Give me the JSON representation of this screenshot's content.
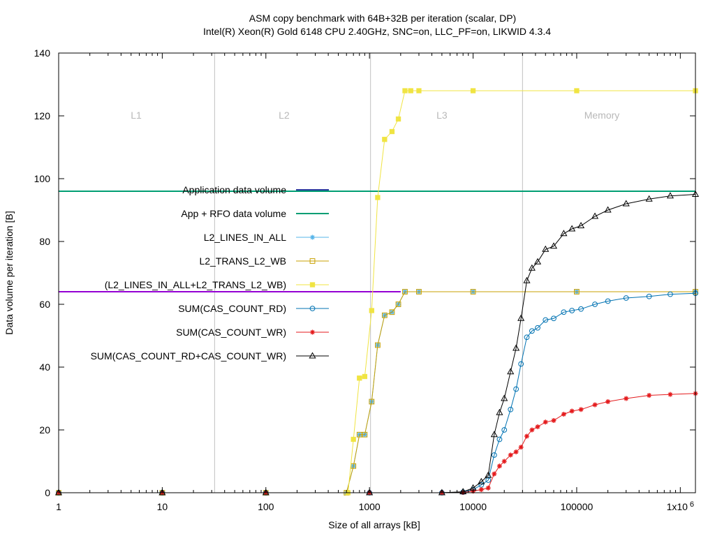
{
  "chart_data": {
    "type": "line",
    "title": "ASM copy benchmark with 64B+32B per iteration (scalar, DP)",
    "subtitle": "Intel(R) Xeon(R) Gold 6148 CPU 2.40GHz, SNC=on, LLC_PF=on, LIKWID 4.3.4",
    "xlabel": "Size of all arrays [kB]",
    "ylabel": "Data volume per iteration [B]",
    "xscale": "log",
    "xlim": [
      1,
      1400000
    ],
    "ylim": [
      0,
      140
    ],
    "x_ticks": [
      {
        "value": 1,
        "label": "1"
      },
      {
        "value": 10,
        "label": "10"
      },
      {
        "value": 100,
        "label": "100"
      },
      {
        "value": 1000,
        "label": "1000"
      },
      {
        "value": 10000,
        "label": "10000"
      },
      {
        "value": 100000,
        "label": "100000"
      },
      {
        "value": 1000000,
        "label": "1x10",
        "sup": "6"
      }
    ],
    "y_ticks": [
      0,
      20,
      40,
      60,
      80,
      100,
      120,
      140
    ],
    "grid": false,
    "legend_position": "center-left",
    "regions": {
      "boundaries": [
        32,
        1024,
        30000
      ],
      "labels": [
        {
          "text": "L1",
          "x": 5.6
        },
        {
          "text": "L2",
          "x": 150
        },
        {
          "text": "L3",
          "x": 5000
        },
        {
          "text": "Memory",
          "x": 175000
        }
      ]
    },
    "reference_lines": [
      {
        "name": "Application data volume",
        "y": 96,
        "color": "#2b3a9e"
      },
      {
        "name": "App + RFO data volume",
        "y": 96,
        "color": "#009e73"
      },
      {
        "y": 64,
        "color": "#9400d3",
        "x_end": 2000
      }
    ],
    "series": [
      {
        "name": "L2_LINES_IN_ALL",
        "marker": "asterisk",
        "color": "#56b4e9",
        "points": [
          [
            1,
            0
          ],
          [
            10,
            0
          ],
          [
            100,
            0
          ],
          [
            600,
            0
          ],
          [
            700,
            8.5
          ],
          [
            800,
            18.5
          ],
          [
            900,
            18.5
          ],
          [
            1050,
            29
          ],
          [
            1200,
            47
          ],
          [
            1400,
            56.5
          ],
          [
            1650,
            57.5
          ],
          [
            1900,
            60
          ],
          [
            2200,
            64
          ],
          [
            3000,
            64
          ],
          [
            10000,
            64
          ],
          [
            100000,
            64
          ],
          [
            1400000,
            64
          ]
        ]
      },
      {
        "name": "L2_TRANS_L2_WB",
        "marker": "open-square",
        "color": "#c8a000",
        "points": [
          [
            1,
            0
          ],
          [
            10,
            0
          ],
          [
            100,
            0
          ],
          [
            600,
            0
          ],
          [
            700,
            8.5
          ],
          [
            800,
            18.5
          ],
          [
            900,
            18.5
          ],
          [
            1050,
            29
          ],
          [
            1200,
            47
          ],
          [
            1400,
            56.5
          ],
          [
            1650,
            57.5
          ],
          [
            1900,
            60
          ],
          [
            2200,
            64
          ],
          [
            3000,
            64
          ],
          [
            10000,
            64
          ],
          [
            100000,
            64
          ],
          [
            1400000,
            64
          ]
        ]
      },
      {
        "name": "(L2_LINES_IN_ALL+L2_TRANS_L2_WB)",
        "marker": "filled-square",
        "color": "#f0e442",
        "points": [
          [
            1,
            0
          ],
          [
            10,
            0
          ],
          [
            100,
            0
          ],
          [
            620,
            0
          ],
          [
            700,
            17
          ],
          [
            800,
            36.5
          ],
          [
            900,
            37
          ],
          [
            1050,
            58
          ],
          [
            1200,
            94
          ],
          [
            1400,
            112.5
          ],
          [
            1650,
            115
          ],
          [
            1900,
            119
          ],
          [
            2200,
            128
          ],
          [
            2500,
            128
          ],
          [
            3000,
            128
          ],
          [
            10000,
            128
          ],
          [
            100000,
            128
          ],
          [
            1400000,
            128
          ]
        ]
      },
      {
        "name": "SUM(CAS_COUNT_RD)",
        "marker": "open-circle",
        "color": "#0072b2",
        "points": [
          [
            1,
            0
          ],
          [
            10,
            0
          ],
          [
            100,
            0
          ],
          [
            1000,
            0
          ],
          [
            5000,
            0
          ],
          [
            8000,
            0.2
          ],
          [
            10000,
            1
          ],
          [
            12000,
            2.5
          ],
          [
            14000,
            4
          ],
          [
            16000,
            12
          ],
          [
            18000,
            17
          ],
          [
            20000,
            20
          ],
          [
            23000,
            26.5
          ],
          [
            26000,
            33
          ],
          [
            29000,
            41
          ],
          [
            33000,
            49.5
          ],
          [
            37000,
            51.5
          ],
          [
            42000,
            52.5
          ],
          [
            50000,
            55
          ],
          [
            60000,
            55.5
          ],
          [
            75000,
            57.5
          ],
          [
            90000,
            58
          ],
          [
            110000,
            58.5
          ],
          [
            150000,
            60
          ],
          [
            200000,
            61
          ],
          [
            300000,
            62
          ],
          [
            500000,
            62.5
          ],
          [
            800000,
            63.2
          ],
          [
            1400000,
            63.5
          ]
        ]
      },
      {
        "name": "SUM(CAS_COUNT_WR)",
        "marker": "asterisk",
        "color": "#e41a1c",
        "points": [
          [
            1,
            0
          ],
          [
            10,
            0
          ],
          [
            100,
            0
          ],
          [
            1000,
            0
          ],
          [
            5000,
            0
          ],
          [
            8000,
            0.1
          ],
          [
            10000,
            0.5
          ],
          [
            12000,
            1
          ],
          [
            14000,
            1.5
          ],
          [
            16000,
            6
          ],
          [
            18000,
            8.5
          ],
          [
            20000,
            10
          ],
          [
            23000,
            12
          ],
          [
            26000,
            13
          ],
          [
            29000,
            14.5
          ],
          [
            33000,
            18
          ],
          [
            37000,
            20
          ],
          [
            42000,
            21
          ],
          [
            50000,
            22.5
          ],
          [
            60000,
            23
          ],
          [
            75000,
            25
          ],
          [
            90000,
            26
          ],
          [
            110000,
            26.5
          ],
          [
            150000,
            28
          ],
          [
            200000,
            29
          ],
          [
            300000,
            30
          ],
          [
            500000,
            31
          ],
          [
            800000,
            31.3
          ],
          [
            1400000,
            31.6
          ]
        ]
      },
      {
        "name": "SUM(CAS_COUNT_RD+CAS_COUNT_WR)",
        "marker": "open-triangle",
        "color": "#000000",
        "points": [
          [
            1,
            0
          ],
          [
            10,
            0
          ],
          [
            100,
            0
          ],
          [
            1000,
            0
          ],
          [
            5000,
            0
          ],
          [
            8000,
            0.3
          ],
          [
            10000,
            1.5
          ],
          [
            12000,
            3.5
          ],
          [
            14000,
            5.5
          ],
          [
            16000,
            18.5
          ],
          [
            18000,
            25.5
          ],
          [
            20000,
            30
          ],
          [
            23000,
            38.5
          ],
          [
            26000,
            46
          ],
          [
            29000,
            55.5
          ],
          [
            33000,
            67.5
          ],
          [
            37000,
            71.5
          ],
          [
            42000,
            73.5
          ],
          [
            50000,
            77.5
          ],
          [
            60000,
            78.5
          ],
          [
            75000,
            82.5
          ],
          [
            90000,
            84
          ],
          [
            110000,
            85
          ],
          [
            150000,
            88
          ],
          [
            200000,
            90
          ],
          [
            300000,
            92
          ],
          [
            500000,
            93.5
          ],
          [
            800000,
            94.5
          ],
          [
            1400000,
            95
          ]
        ]
      }
    ]
  }
}
